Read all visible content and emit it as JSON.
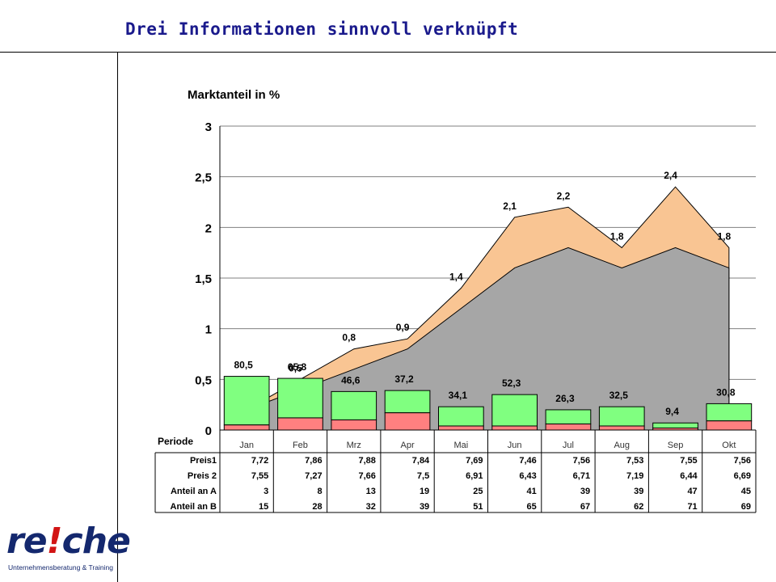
{
  "slide": {
    "title": "Drei Informationen sinnvoll verknüpft"
  },
  "logo": {
    "brand_prefix": "re",
    "brand_mark": "!",
    "brand_suffix": "che",
    "tagline": "Unternehmensberatung & Training"
  },
  "chart_data": {
    "type": "area",
    "title": "",
    "ylabel": "Marktanteil in %",
    "ylim": [
      0,
      3
    ],
    "yticks": [
      "0",
      "0,5",
      "1",
      "1,5",
      "2",
      "2,5",
      "3"
    ],
    "grid": true,
    "categories": [
      "Jan",
      "Feb",
      "Mrz",
      "Apr",
      "Mai",
      "Jun",
      "Jul",
      "Aug",
      "Sep",
      "Okt"
    ],
    "series": [
      {
        "name": "",
        "role": "upper area (labeled)",
        "color": "#f9c593",
        "values": [
          0.2,
          0.5,
          0.8,
          0.9,
          1.4,
          2.1,
          2.2,
          1.8,
          2.4,
          1.8
        ],
        "value_labels": [
          "",
          "0,5",
          "0,8",
          "0,9",
          "1,4",
          "2,1",
          "2,2",
          "1,8",
          "2,4",
          "1,8"
        ]
      },
      {
        "name": "",
        "role": "lower area",
        "color": "#a6a6a6",
        "values": [
          0.2,
          0.4,
          0.6,
          0.8,
          1.2,
          1.6,
          1.8,
          1.6,
          1.8,
          1.6
        ]
      }
    ],
    "bars": {
      "green_color": "#80ff80",
      "red_color": "#ff8080",
      "green_values": [
        0.48,
        0.39,
        0.28,
        0.22,
        0.19,
        0.31,
        0.14,
        0.19,
        0.05,
        0.17
      ],
      "red_values": [
        0.05,
        0.12,
        0.1,
        0.17,
        0.04,
        0.04,
        0.06,
        0.04,
        0.02,
        0.09
      ],
      "labels": [
        "80,5",
        "65,8",
        "46,6",
        "37,2",
        "34,1",
        "52,3",
        "26,3",
        "32,5",
        "9,4",
        "30,8"
      ]
    },
    "table": {
      "header_label": "Periode",
      "rows": [
        {
          "label": "Preis1",
          "values": [
            "7,72",
            "7,86",
            "7,88",
            "7,84",
            "7,69",
            "7,46",
            "7,56",
            "7,53",
            "7,55",
            "7,56"
          ]
        },
        {
          "label": "Preis 2",
          "values": [
            "7,55",
            "7,27",
            "7,66",
            "7,5",
            "6,91",
            "6,43",
            "6,71",
            "7,19",
            "6,44",
            "6,69"
          ]
        },
        {
          "label": "Anteil an A",
          "values": [
            "3",
            "8",
            "13",
            "19",
            "25",
            "41",
            "39",
            "39",
            "47",
            "45"
          ]
        },
        {
          "label": "Anteil an B",
          "values": [
            "15",
            "28",
            "32",
            "39",
            "51",
            "65",
            "67",
            "62",
            "71",
            "69"
          ]
        }
      ]
    }
  }
}
